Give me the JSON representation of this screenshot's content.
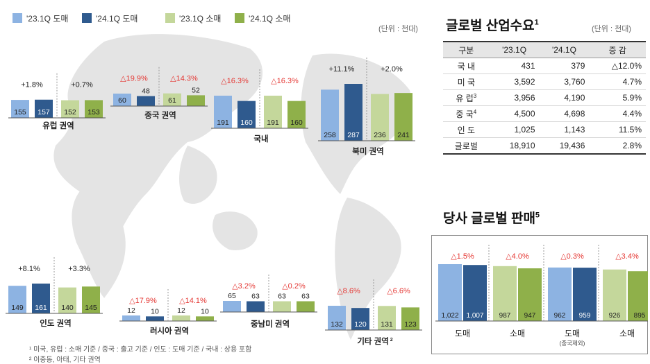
{
  "legend": [
    {
      "label": "'23.1Q 도매",
      "color": "#8db3e2"
    },
    {
      "label": "'24.1Q 도매",
      "color": "#2f5a8e"
    },
    {
      "label": "'23.1Q 소매",
      "color": "#c4d79b"
    },
    {
      "label": "'24.1Q 소매",
      "color": "#8fb04a"
    }
  ],
  "unit_label": "(단위 : 천대)",
  "demand_table": {
    "title": "글로벌 산업수요",
    "title_sup": "1",
    "unit": "(단위 : 천대)",
    "headers": [
      "구분",
      "'23.1Q",
      "'24.1Q",
      "증 감"
    ],
    "rows": [
      {
        "region": "국 내",
        "sup": "",
        "q23": "431",
        "q24": "379",
        "change": "△12.0%"
      },
      {
        "region": "미 국",
        "sup": "",
        "q23": "3,592",
        "q24": "3,760",
        "change": "4.7%"
      },
      {
        "region": "유 럽",
        "sup": "3",
        "q23": "3,956",
        "q24": "4,190",
        "change": "5.9%"
      },
      {
        "region": "중 국",
        "sup": "4",
        "q23": "4,500",
        "q24": "4,698",
        "change": "4.4%"
      },
      {
        "region": "인 도",
        "sup": "",
        "q23": "1,025",
        "q24": "1,143",
        "change": "11.5%"
      }
    ],
    "total": {
      "region": "글로벌",
      "q23": "18,910",
      "q24": "19,436",
      "change": "2.8%"
    }
  },
  "sales": {
    "title": "당사 글로벌 판매",
    "title_sup": "5"
  },
  "footnotes": [
    "¹ 미국, 유럽 : 소매 기준 / 중국 : 출고 기준 / 인도 : 도매 기준 / 국내 : 상용 포함",
    "² 이중동, 아태, 기타 권역"
  ],
  "chart_data": [
    {
      "type": "bar",
      "name": "유럽 권역",
      "categories": [
        "'23.1Q 도매",
        "'24.1Q 도매",
        "'23.1Q 소매",
        "'24.1Q 소매"
      ],
      "values": [
        155,
        157,
        152,
        153
      ],
      "changes": [
        "+1.8%",
        "+0.7%"
      ]
    },
    {
      "type": "bar",
      "name": "중국 권역",
      "categories": [
        "'23.1Q 도매",
        "'24.1Q 도매",
        "'23.1Q 소매",
        "'24.1Q 소매"
      ],
      "values": [
        60,
        48,
        61,
        52
      ],
      "changes": [
        "△19.9%",
        "△14.3%"
      ]
    },
    {
      "type": "bar",
      "name": "국내",
      "categories": [
        "'23.1Q 도매",
        "'24.1Q 도매",
        "'23.1Q 소매",
        "'24.1Q 소매"
      ],
      "values": [
        191,
        160,
        191,
        160
      ],
      "changes": [
        "△16.3%",
        "△16.3%"
      ]
    },
    {
      "type": "bar",
      "name": "북미 권역",
      "categories": [
        "'23.1Q 도매",
        "'24.1Q 도매",
        "'23.1Q 소매",
        "'24.1Q 소매"
      ],
      "values": [
        258,
        287,
        236,
        241
      ],
      "changes": [
        "+11.1%",
        "+2.0%"
      ]
    },
    {
      "type": "bar",
      "name": "인도 권역",
      "categories": [
        "'23.1Q 도매",
        "'24.1Q 도매",
        "'23.1Q 소매",
        "'24.1Q 소매"
      ],
      "values": [
        149,
        161,
        140,
        145
      ],
      "changes": [
        "+8.1%",
        "+3.3%"
      ]
    },
    {
      "type": "bar",
      "name": "러시아 권역",
      "categories": [
        "'23.1Q 도매",
        "'24.1Q 도매",
        "'23.1Q 소매",
        "'24.1Q 소매"
      ],
      "values": [
        12,
        10,
        12,
        10
      ],
      "changes": [
        "△17.9%",
        "△14.1%"
      ]
    },
    {
      "type": "bar",
      "name": "중남미 권역",
      "categories": [
        "'23.1Q 도매",
        "'24.1Q 도매",
        "'23.1Q 소매",
        "'24.1Q 소매"
      ],
      "values": [
        65,
        63,
        63,
        63
      ],
      "changes": [
        "△3.2%",
        "△0.2%"
      ]
    },
    {
      "type": "bar",
      "name": "기타 권역",
      "name_sup": "2",
      "categories": [
        "'23.1Q 도매",
        "'24.1Q 도매",
        "'23.1Q 소매",
        "'24.1Q 소매"
      ],
      "values": [
        132,
        120,
        131,
        123
      ],
      "changes": [
        "△8.6%",
        "△6.6%"
      ]
    },
    {
      "type": "bar",
      "name": "당사 글로벌 판매",
      "groups": [
        "도매",
        "소매",
        "도매",
        "소매"
      ],
      "group_notes": [
        "",
        "",
        "(중국제외)",
        ""
      ],
      "values": [
        1022,
        1007,
        987,
        947,
        962,
        959,
        926,
        895
      ],
      "changes": [
        "△1.5%",
        "△4.0%",
        "△0.3%",
        "△3.4%"
      ]
    }
  ]
}
